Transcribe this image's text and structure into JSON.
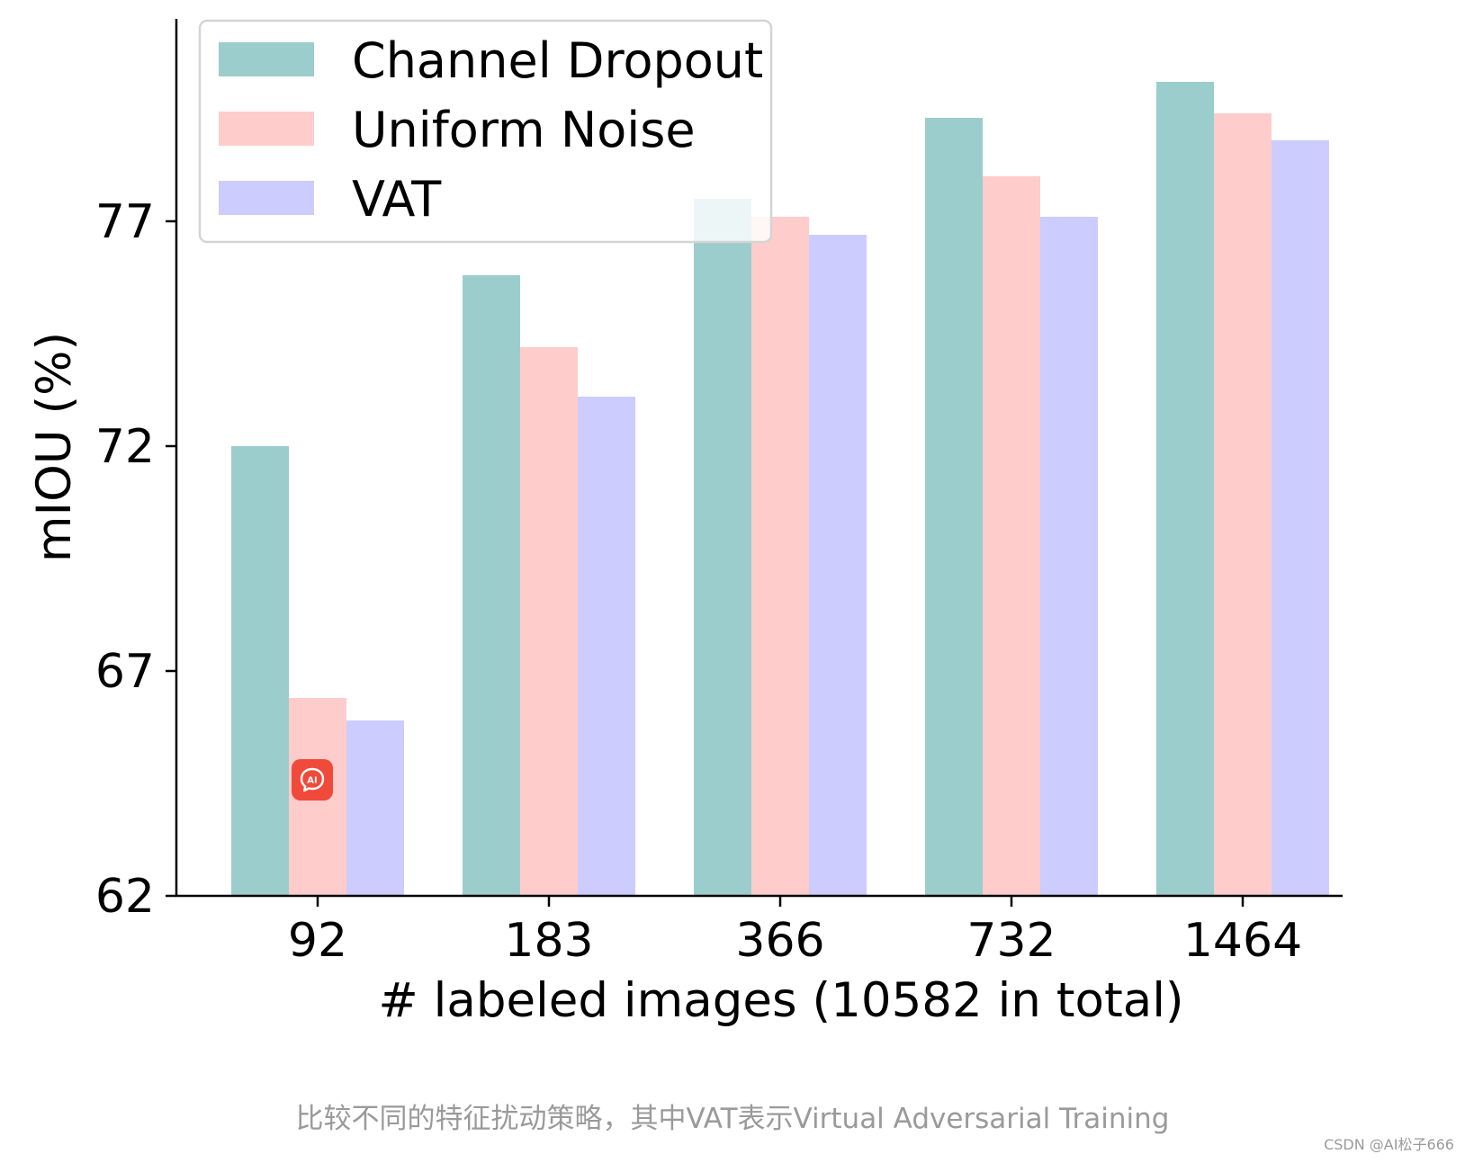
{
  "chart_data": {
    "type": "bar",
    "categories": [
      "92",
      "183",
      "366",
      "732",
      "1464"
    ],
    "series": [
      {
        "name": "Channel Dropout",
        "color": "#9ccdcd",
        "values": [
          72.0,
          75.8,
          77.5,
          79.3,
          80.1
        ]
      },
      {
        "name": "Uniform Noise",
        "color": "#ffcccc",
        "values": [
          66.4,
          74.2,
          77.1,
          78.0,
          79.4
        ]
      },
      {
        "name": "VAT",
        "color": "#ccccfe",
        "values": [
          65.9,
          73.1,
          76.7,
          77.1,
          78.8
        ]
      }
    ],
    "xlabel": "# labeled images (10582 in total)",
    "ylabel": "mIOU (%)",
    "ylim": [
      62,
      81.5
    ],
    "yticks": [
      "62",
      "67",
      "72",
      "77"
    ],
    "legend": {
      "placement": "top-left"
    },
    "grid": false
  },
  "caption": "比较不同的特征扰动策略，其中VAT表示Virtual Adversarial Training",
  "watermark": "CSDN @AI松子666",
  "badge": {
    "icon": "ai-chat-icon",
    "text": "AI",
    "color": "#f04a3b"
  }
}
